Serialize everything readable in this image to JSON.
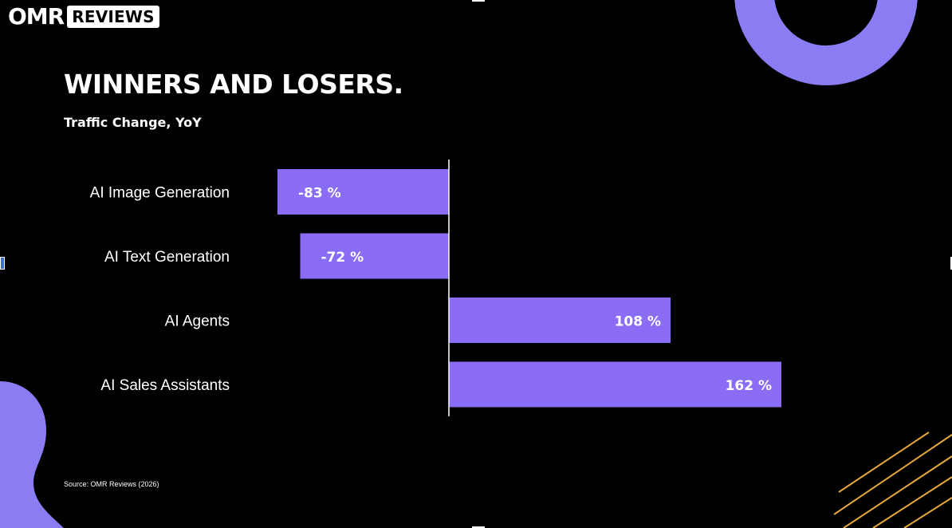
{
  "logo": {
    "brand": "OMR",
    "badge": "REVIEWS"
  },
  "title": "WINNERS AND LOSERS.",
  "subtitle": "Traffic Change, YoY",
  "source": "Source: OMR Reviews (2026)",
  "colors": {
    "bar": "#8b6cf5",
    "accent_circle": "#8a7cf2",
    "lines": "#e7a93b",
    "background": "#000000"
  },
  "chart_data": {
    "type": "bar",
    "orientation": "horizontal",
    "title": "WINNERS AND LOSERS.",
    "subtitle": "Traffic Change, YoY",
    "categories": [
      "AI Image Generation",
      "AI Text Generation",
      "AI Agents",
      "AI Sales Assistants"
    ],
    "values": [
      -83,
      -72,
      108,
      162
    ],
    "data_labels": [
      "-83 %",
      "-72 %",
      "108 %",
      "162 %"
    ],
    "unit": "%",
    "xlim": [
      -83,
      162
    ],
    "grid": false,
    "legend": "none"
  }
}
